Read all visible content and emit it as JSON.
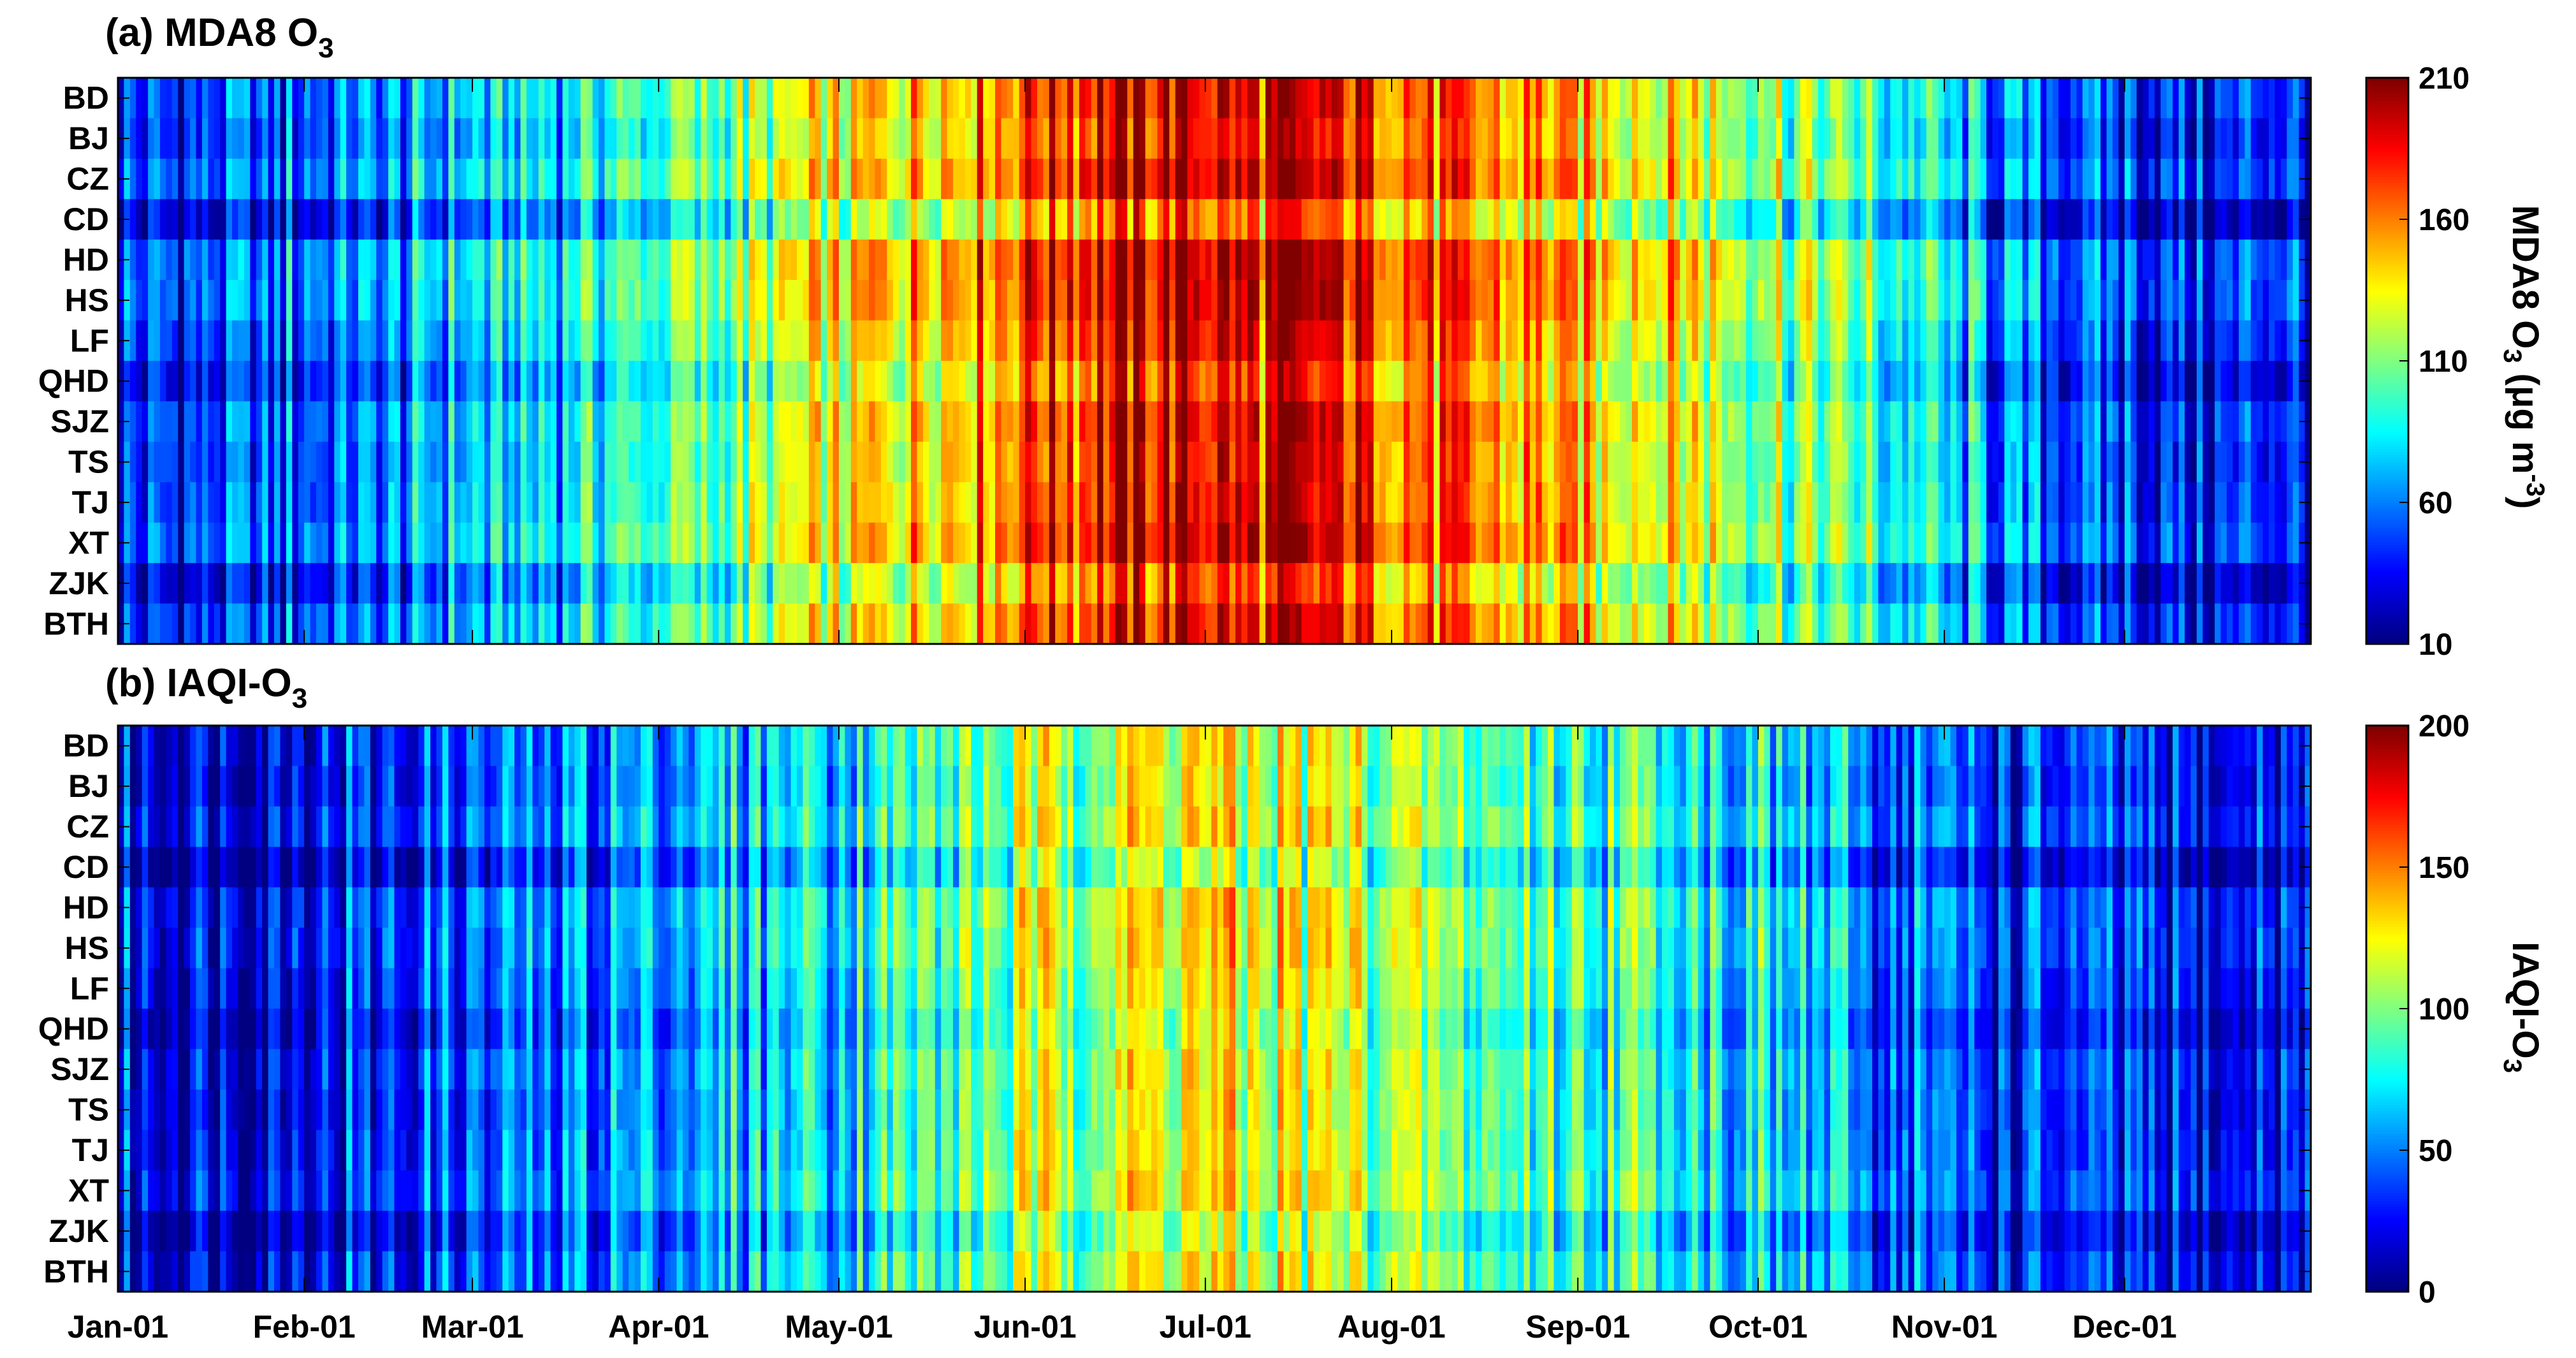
{
  "chart_data": [
    {
      "type": "heatmap",
      "title": "(a) MDA8 O3",
      "colorbar_label": "MDA8 O3 (μg m-3)",
      "colorbar_ticks": [
        10,
        60,
        110,
        160,
        210
      ],
      "clim": [
        10,
        210
      ],
      "colormap": "jet",
      "rows": [
        "BD",
        "BJ",
        "CZ",
        "CD",
        "HD",
        "HS",
        "LF",
        "QHD",
        "SJZ",
        "TS",
        "TJ",
        "XT",
        "ZJK",
        "BTH"
      ],
      "x_tick_labels": [
        "Jan-01",
        "Feb-01",
        "Mar-01",
        "Apr-01",
        "May-01",
        "Jun-01",
        "Jul-01",
        "Aug-01",
        "Sep-01",
        "Oct-01",
        "Nov-01",
        "Dec-01"
      ],
      "x_tick_days": [
        1,
        32,
        60,
        91,
        121,
        152,
        182,
        213,
        244,
        274,
        305,
        335
      ],
      "n_days": 365,
      "monthly_mean_approx": [
        40,
        55,
        80,
        105,
        150,
        185,
        175,
        150,
        130,
        95,
        45,
        35
      ],
      "site_offsets_approx": {
        "BD": 8,
        "BJ": 2,
        "CZ": 12,
        "CD": -15,
        "HD": 15,
        "HS": 14,
        "LF": 6,
        "QHD": -6,
        "SJZ": 8,
        "TS": 4,
        "TJ": 6,
        "XT": 12,
        "ZJK": -12,
        "BTH": 4
      }
    },
    {
      "type": "heatmap",
      "title": "(b) IAQI-O3",
      "colorbar_label": "IAQI-O3",
      "colorbar_ticks": [
        0,
        50,
        100,
        150,
        200
      ],
      "clim": [
        0,
        200
      ],
      "colormap": "jet",
      "rows": [
        "BD",
        "BJ",
        "CZ",
        "CD",
        "HD",
        "HS",
        "LF",
        "QHD",
        "SJZ",
        "TS",
        "TJ",
        "XT",
        "ZJK",
        "BTH"
      ],
      "x_tick_labels": [
        "Jan-01",
        "Feb-01",
        "Mar-01",
        "Apr-01",
        "May-01",
        "Jun-01",
        "Jul-01",
        "Aug-01",
        "Sep-01",
        "Oct-01",
        "Nov-01",
        "Dec-01"
      ],
      "x_tick_days": [
        1,
        32,
        60,
        91,
        121,
        152,
        182,
        213,
        244,
        274,
        305,
        335
      ],
      "n_days": 365,
      "monthly_mean_approx": [
        22,
        30,
        45,
        62,
        85,
        120,
        110,
        90,
        78,
        50,
        25,
        20
      ],
      "site_offsets_approx": {
        "BD": 5,
        "BJ": 1,
        "CZ": 8,
        "CD": -10,
        "HD": 10,
        "HS": 9,
        "LF": 4,
        "QHD": -4,
        "SJZ": 5,
        "TS": 3,
        "TJ": 4,
        "XT": 8,
        "ZJK": -8,
        "BTH": 3
      }
    }
  ],
  "panels": [
    {
      "title_main": "(a) MDA8 O",
      "title_sub": "3",
      "cb_main": "MDA8 O",
      "cb_sub": "3",
      "cb_rest": " (μg m",
      "cb_sup": "-3",
      "cb_close": ")"
    },
    {
      "title_main": "(b) IAQI-O",
      "title_sub": "3",
      "cb_main": "IAQI-O",
      "cb_sub": "3"
    }
  ]
}
